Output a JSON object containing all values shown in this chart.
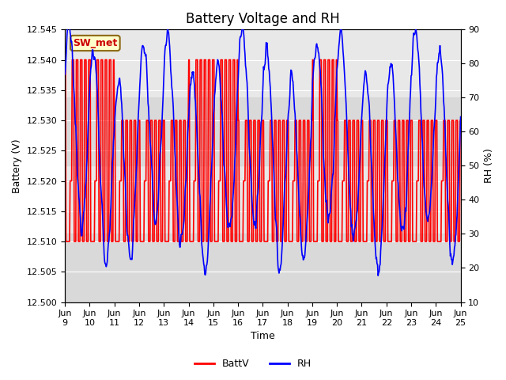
{
  "title": "Battery Voltage and RH",
  "xlabel": "Time",
  "ylabel_left": "Battery (V)",
  "ylabel_right": "RH (%)",
  "annotation": "SW_met",
  "ylim_left": [
    12.5,
    12.545
  ],
  "ylim_right": [
    10,
    90
  ],
  "yticks_left": [
    12.5,
    12.505,
    12.51,
    12.515,
    12.52,
    12.525,
    12.53,
    12.535,
    12.54,
    12.545
  ],
  "yticks_right": [
    10,
    20,
    30,
    40,
    50,
    60,
    70,
    80,
    90
  ],
  "xtick_labels": [
    "Jun\n9",
    "Jun\n10",
    "Jun\n11",
    "Jun\n12",
    "Jun\n13",
    "Jun\n14",
    "Jun\n15",
    "Jun\n16",
    "Jun\n17",
    "Jun\n18",
    "Jun\n19",
    "Jun\n20",
    "Jun\n21",
    "Jun\n22",
    "Jun\n23",
    "Jun\n24",
    "Jun\n25"
  ],
  "background_color": "#ffffff",
  "plot_bg_color": "#e8e8e8",
  "band_light_color": "#d8d8d8",
  "legend_items": [
    {
      "label": "BattV",
      "color": "#ff0000",
      "lw": 2
    },
    {
      "label": "RH",
      "color": "#0000ff",
      "lw": 2
    }
  ],
  "batt_color": "#ff0000",
  "rh_color": "#0000ff",
  "title_fontsize": 12,
  "label_fontsize": 9,
  "tick_fontsize": 8
}
